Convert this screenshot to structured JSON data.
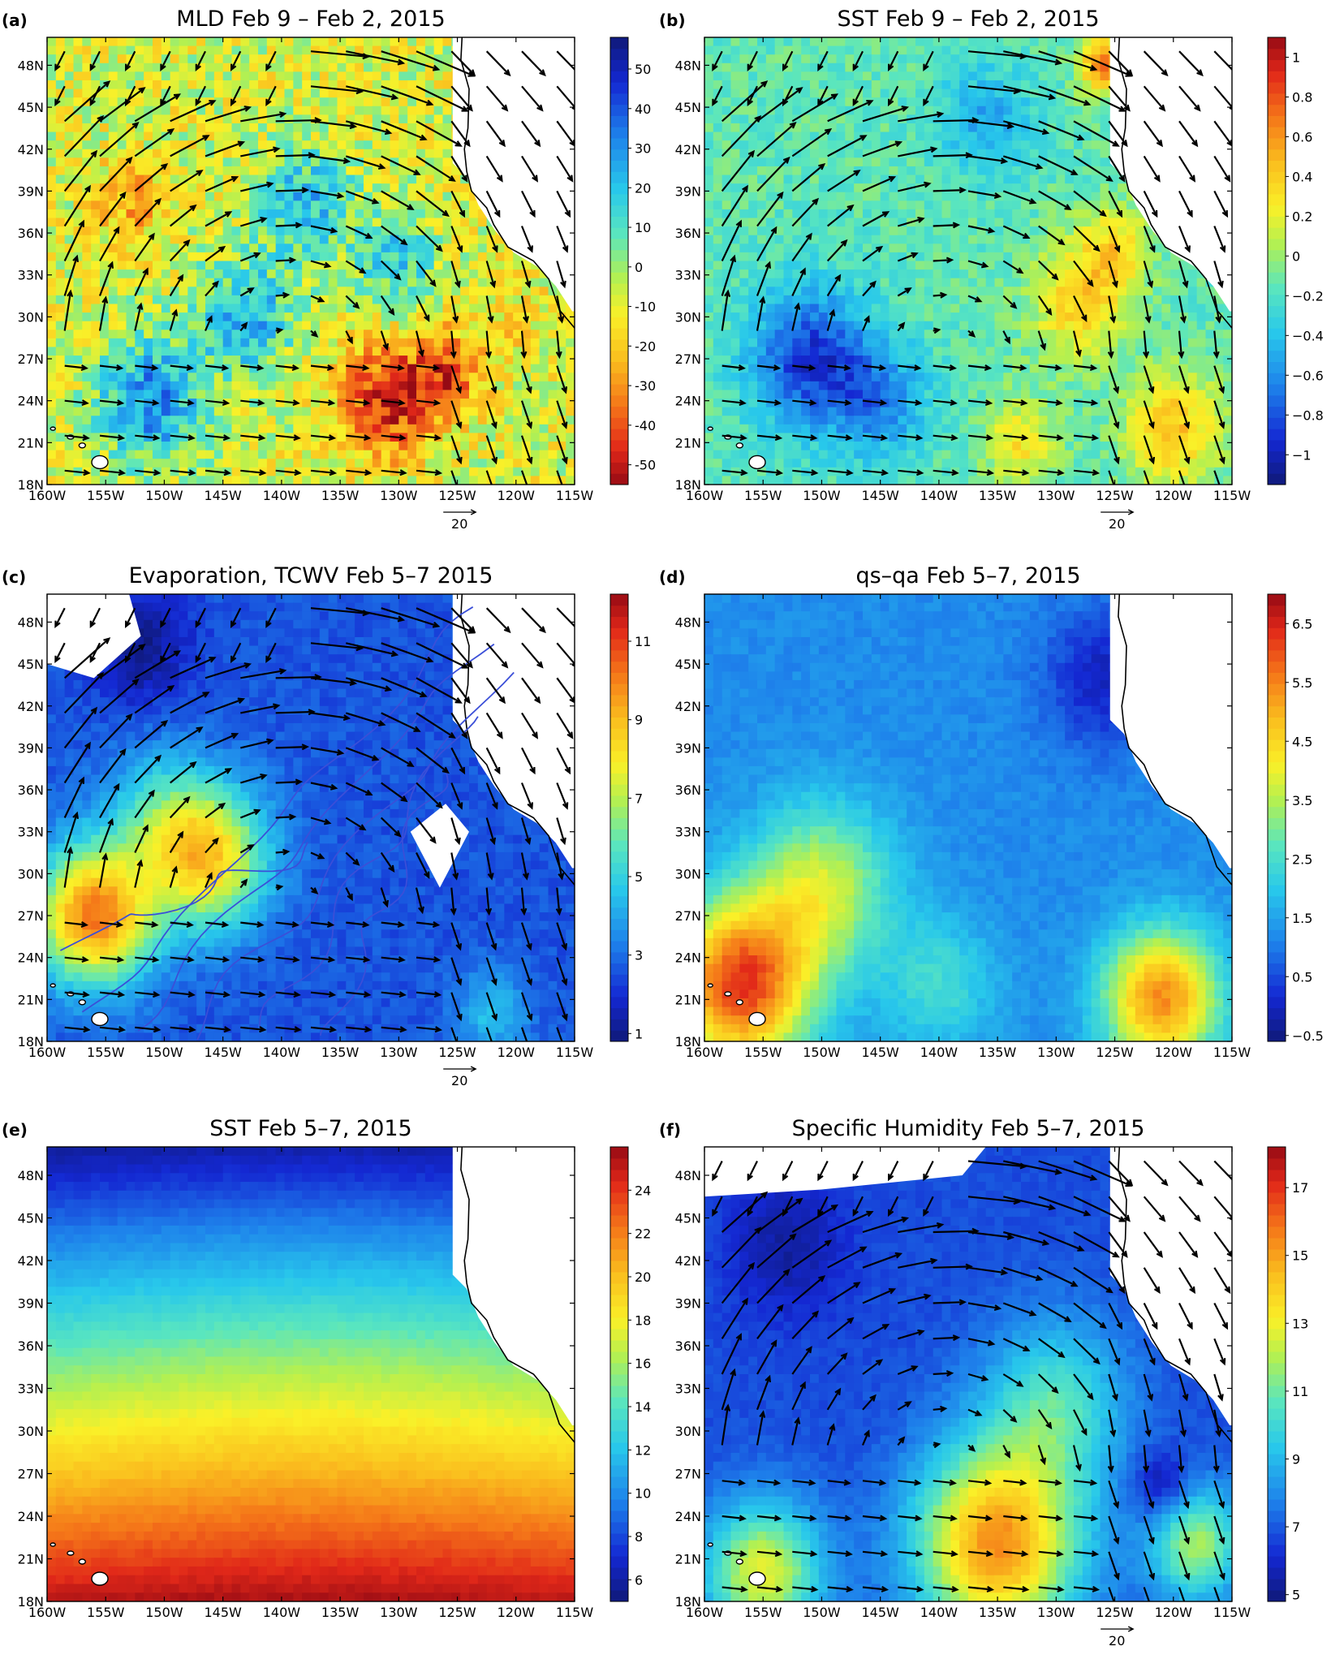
{
  "figure": {
    "lat_ticks": [
      "18N",
      "21N",
      "24N",
      "27N",
      "30N",
      "33N",
      "36N",
      "39N",
      "42N",
      "45N",
      "48N"
    ],
    "lon_ticks": [
      "160W",
      "155W",
      "150W",
      "145W",
      "140W",
      "135W",
      "130W",
      "125W",
      "120W",
      "115W"
    ],
    "vector_scale": {
      "value": 20,
      "label": "20"
    },
    "land_color": "#ffffff",
    "coast_color": "#000000",
    "arrow_color": "#000000",
    "colormap": "rainbow (dark blue to dark red)"
  },
  "chart_data": [
    {
      "type": "heatmap",
      "panel": "(a)",
      "title": "MLD Feb 9  – Feb 2, 2015",
      "reversed_colormap": true,
      "colorbar": {
        "min": -55,
        "max": 58,
        "ticks": [
          -50,
          -40,
          -30,
          -20,
          -10,
          0,
          10,
          20,
          30,
          40,
          50
        ],
        "tick_labels": [
          "-50",
          "-40",
          "-30",
          "-20",
          "-10",
          "0",
          "10",
          "20",
          "30",
          "40",
          "50"
        ]
      },
      "xlim": [
        -160,
        -115
      ],
      "ylim": [
        18,
        50
      ],
      "wind_vectors": true,
      "vector_scale_shown": true,
      "field": {
        "base": -8,
        "blobs": [
          {
            "lon": -151,
            "lat": 24,
            "r": 4.5,
            "amp": 40
          },
          {
            "lon": -143,
            "lat": 30,
            "r": 4,
            "amp": 32
          },
          {
            "lon": -138,
            "lat": 38,
            "r": 4,
            "amp": 30
          },
          {
            "lon": -130,
            "lat": 34,
            "r": 3.5,
            "amp": 24
          },
          {
            "lon": -131,
            "lat": 24,
            "r": 4,
            "amp": -40
          },
          {
            "lon": -126,
            "lat": 26,
            "r": 3,
            "amp": -30
          },
          {
            "lon": -153,
            "lat": 38,
            "r": 3,
            "amp": -18
          },
          {
            "lon": -121,
            "lat": 30,
            "r": 4,
            "amp": -6
          }
        ],
        "noise": 14
      },
      "contours": []
    },
    {
      "type": "heatmap",
      "panel": "(b)",
      "title": "SST Feb 9  – Feb 2, 2015",
      "reversed_colormap": false,
      "colorbar": {
        "min": -1.15,
        "max": 1.1,
        "ticks": [
          -1,
          -0.8,
          -0.6,
          -0.4,
          -0.2,
          0,
          0.2,
          0.4,
          0.6,
          0.8,
          1
        ],
        "tick_labels": [
          "−1",
          "−0.8",
          "−0.6",
          "−0.4",
          "−0.2",
          "0",
          "0.2",
          "0.4",
          "0.6",
          "0.8",
          "1"
        ]
      },
      "xlim": [
        -160,
        -115
      ],
      "ylim": [
        18,
        50
      ],
      "wind_vectors": true,
      "vector_scale_shown": true,
      "field": {
        "base": -0.15,
        "blobs": [
          {
            "lon": -151,
            "lat": 27,
            "r": 5,
            "amp": -0.75
          },
          {
            "lon": -145,
            "lat": 24,
            "r": 4,
            "amp": -0.45
          },
          {
            "lon": -136,
            "lat": 44,
            "r": 4,
            "amp": -0.35
          },
          {
            "lon": -128,
            "lat": 31,
            "r": 4,
            "amp": 0.55
          },
          {
            "lon": -125,
            "lat": 35,
            "r": 3,
            "amp": 0.45
          },
          {
            "lon": -120,
            "lat": 22,
            "r": 4,
            "amp": 0.6
          },
          {
            "lon": -133,
            "lat": 21,
            "r": 3,
            "amp": 0.45
          },
          {
            "lon": -126,
            "lat": 48,
            "r": 2,
            "amp": 0.8
          }
        ],
        "noise": 0.12
      },
      "contours": []
    },
    {
      "type": "heatmap",
      "panel": "(c)",
      "title": "Evaporation, TCWV Feb 5–7 2015",
      "reversed_colormap": false,
      "colorbar": {
        "min": 0.8,
        "max": 12.2,
        "ticks": [
          1,
          3,
          5,
          7,
          9,
          11
        ],
        "tick_labels": [
          "1",
          "3",
          "5",
          "7",
          "9",
          "11"
        ]
      },
      "xlim": [
        -160,
        -115
      ],
      "ylim": [
        18,
        50
      ],
      "wind_vectors": true,
      "vector_scale_shown": true,
      "field": {
        "base": 2.6,
        "blobs": [
          {
            "lon": -156,
            "lat": 27,
            "r": 5,
            "amp": 7.5
          },
          {
            "lon": -146,
            "lat": 31,
            "r": 5,
            "amp": 5.5
          },
          {
            "lon": -150,
            "lat": 34,
            "r": 5,
            "amp": 2.5
          },
          {
            "lon": -152,
            "lat": 46,
            "r": 4,
            "amp": -1.6
          },
          {
            "lon": -122,
            "lat": 20,
            "r": 3,
            "amp": 2.0
          }
        ],
        "noise": 0.35
      },
      "contours": [
        {
          "lon0": -157,
          "lat0": 19.5,
          "lon1": -123,
          "lat1": 49
        },
        {
          "lon0": -153,
          "lat0": 19,
          "lon1": -122,
          "lat1": 47
        },
        {
          "lon0": -148,
          "lat0": 18.5,
          "lon1": -121,
          "lat1": 44
        },
        {
          "lon0": -142,
          "lat0": 18.5,
          "lon1": -124,
          "lat1": 41
        },
        {
          "lon0": -136,
          "lat0": 18.5,
          "lon1": -126,
          "lat1": 38
        },
        {
          "lon0": -158,
          "lat0": 25,
          "lon1": -137,
          "lat1": 32
        }
      ],
      "contour_color": "#3b4fd8"
    },
    {
      "type": "heatmap",
      "panel": "(d)",
      "title": "qs–qa Feb 5–7, 2015",
      "reversed_colormap": false,
      "colorbar": {
        "min": -0.6,
        "max": 7.0,
        "ticks": [
          -0.5,
          0.5,
          1.5,
          2.5,
          3.5,
          4.5,
          5.5,
          6.5
        ],
        "tick_labels": [
          "−0.5",
          "0.5",
          "1.5",
          "2.5",
          "3.5",
          "4.5",
          "5.5",
          "6.5"
        ]
      },
      "xlim": [
        -160,
        -115
      ],
      "ylim": [
        18,
        50
      ],
      "wind_vectors": false,
      "vector_scale_shown": false,
      "field": {
        "base": 1.2,
        "blobs": [
          {
            "lon": -157,
            "lat": 22,
            "r": 6,
            "amp": 5.0
          },
          {
            "lon": -150,
            "lat": 29,
            "r": 6,
            "amp": 2.5
          },
          {
            "lon": -121,
            "lat": 21,
            "r": 5,
            "amp": 4.2
          },
          {
            "lon": -126,
            "lat": 44,
            "r": 5,
            "amp": -1.2
          },
          {
            "lon": -140,
            "lat": 22,
            "r": 5,
            "amp": 1.2
          }
        ],
        "noise": 0.18
      },
      "contours": []
    },
    {
      "type": "heatmap",
      "panel": "(e)",
      "title": "SST Feb 5–7, 2015",
      "reversed_colormap": false,
      "colorbar": {
        "min": 5.0,
        "max": 26.0,
        "ticks": [
          6,
          8,
          10,
          12,
          14,
          16,
          18,
          20,
          22,
          24
        ],
        "tick_labels": [
          "6",
          "8",
          "10",
          "12",
          "14",
          "16",
          "18",
          "20",
          "22",
          "24"
        ]
      },
      "xlim": [
        -160,
        -115
      ],
      "ylim": [
        18,
        50
      ],
      "wind_vectors": false,
      "vector_scale_shown": false,
      "field": {
        "gradient": {
          "lat_top": 49.5,
          "val_top": 6.0,
          "lat_bottom": 18,
          "val_bottom": 25.2
        },
        "blobs": [],
        "noise": 0.25
      },
      "contours": []
    },
    {
      "type": "heatmap",
      "panel": "(f)",
      "title": "Specific Humidity Feb 5–7, 2015",
      "reversed_colormap": false,
      "colorbar": {
        "min": 4.8,
        "max": 18.2,
        "ticks": [
          5,
          7,
          9,
          11,
          13,
          15,
          17
        ],
        "tick_labels": [
          "5",
          "7",
          "9",
          "11",
          "13",
          "15",
          "17"
        ]
      },
      "xlim": [
        -160,
        -115
      ],
      "ylim": [
        18,
        50
      ],
      "wind_vectors": true,
      "vector_scale_shown": true,
      "field": {
        "base": 6.8,
        "blobs": [
          {
            "lon": -135,
            "lat": 22,
            "r": 7,
            "amp": 8.5
          },
          {
            "lon": -155,
            "lat": 20,
            "r": 5,
            "amp": 6.0
          },
          {
            "lon": -118,
            "lat": 22,
            "r": 4,
            "amp": 5.0
          },
          {
            "lon": -130,
            "lat": 32,
            "r": 6,
            "amp": 3.5
          },
          {
            "lon": -121,
            "lat": 26,
            "r": 2.5,
            "amp": -2.0
          },
          {
            "lon": -153,
            "lat": 43,
            "r": 5,
            "amp": -1.4
          }
        ],
        "noise": 0.25
      },
      "contours": []
    }
  ]
}
